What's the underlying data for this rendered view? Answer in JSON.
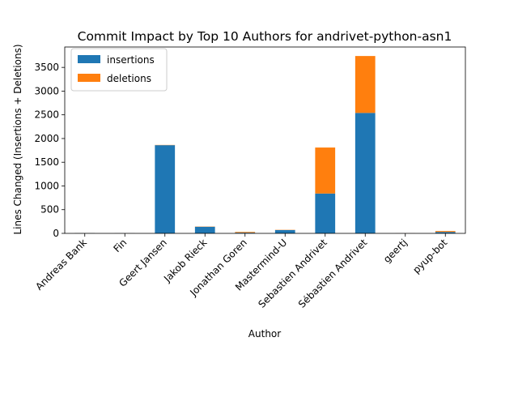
{
  "chart_data": {
    "type": "bar",
    "stacked": true,
    "title": "Commit Impact by Top 10 Authors for andrivet-python-asn1",
    "xlabel": "Author",
    "ylabel": "Lines Changed (Insertions + Deletions)",
    "categories": [
      "Andreas Bank",
      "Fin",
      "Geert Jansen",
      "Jakob Rieck",
      "Jonathan Goren",
      "Mastermind-U",
      "Sebastien Andrivet",
      "Sébastien Andrivet",
      "geertj",
      "pyup-bot"
    ],
    "series": [
      {
        "name": "insertions",
        "color": "#1f77b4",
        "values": [
          5,
          2,
          1860,
          140,
          15,
          70,
          840,
          2540,
          1,
          30
        ]
      },
      {
        "name": "deletions",
        "color": "#ff7f0e",
        "values": [
          2,
          1,
          5,
          5,
          15,
          5,
          970,
          1200,
          1,
          20
        ]
      }
    ],
    "y_ticks": [
      "0",
      "500",
      "1000",
      "1500",
      "2000",
      "2500",
      "3000",
      "3500"
    ],
    "ylim": [
      0,
      3930
    ],
    "legend_position": "upper-left",
    "grid": false
  }
}
